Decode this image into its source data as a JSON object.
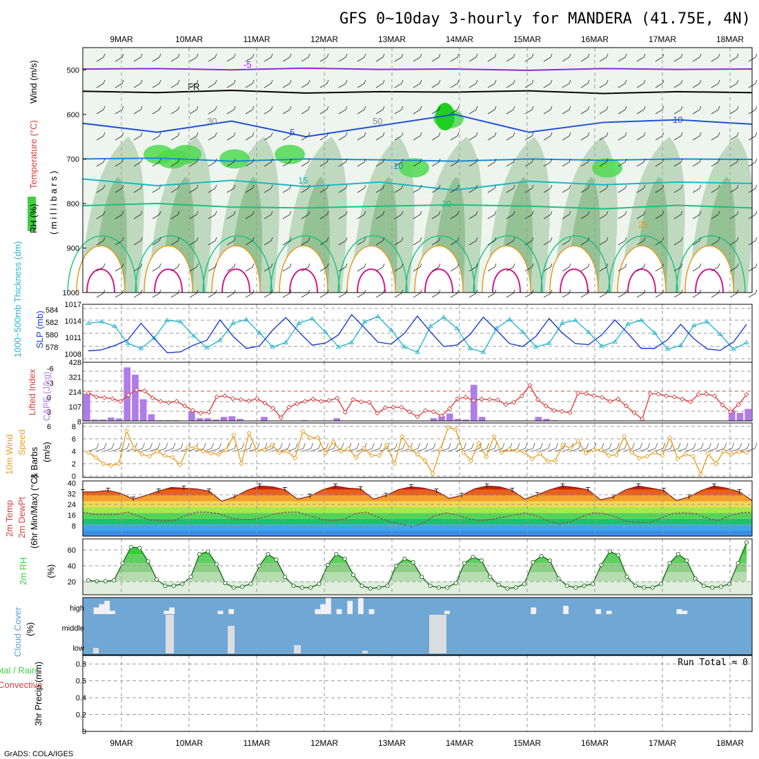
{
  "title": "GFS 0~10day 3-hourly for MANDERA (41.75E, 4N)",
  "credit": "GrADS: COLA/IGES",
  "dates": [
    "9MAR",
    "10MAR",
    "11MAR",
    "12MAR",
    "13MAR",
    "14MAR",
    "15MAR",
    "16MAR",
    "17MAR",
    "18MAR"
  ],
  "chart_data": [
    {
      "type": "heatmap",
      "name": "upper-air cross section",
      "ylabel_parts": [
        "RH (%)",
        "Temperature (°C)",
        "Wind (m/s)"
      ],
      "ylabel2": "( m i l l i b a r s )",
      "y_ticks": [
        "500",
        "600",
        "700",
        "800",
        "900",
        "1000"
      ],
      "ylim": [
        1000,
        450
      ],
      "contour_labels": [
        "-5",
        "FR",
        "5",
        "10",
        "15",
        "20",
        "25",
        "10",
        "30",
        "50"
      ],
      "isotherms": [
        {
          "name": "-5",
          "color": "#8a2bd0",
          "levels_hpa": [
            498,
            497,
            500,
            496,
            499,
            498,
            501,
            497,
            499,
            498
          ]
        },
        {
          "name": "FR",
          "color": "#000000",
          "levels_hpa": [
            548,
            551,
            546,
            552,
            549,
            550,
            547,
            553,
            549,
            551
          ]
        },
        {
          "name": "5",
          "color": "#1e4fd8",
          "levels_hpa": [
            620,
            640,
            615,
            650,
            625,
            600,
            640,
            618,
            612,
            622
          ]
        },
        {
          "name": "10",
          "color": "#1a8ad8",
          "levels_hpa": [
            700,
            698,
            705,
            700,
            702,
            705,
            700,
            703,
            700,
            701
          ]
        },
        {
          "name": "15",
          "color": "#18b8c0",
          "levels_hpa": [
            745,
            760,
            748,
            762,
            752,
            770,
            750,
            758,
            752,
            755
          ]
        },
        {
          "name": "20",
          "color": "#18c080",
          "levels_hpa": [
            805,
            800,
            808,
            810,
            806,
            803,
            806,
            812,
            804,
            810
          ]
        }
      ]
    },
    {
      "type": "line",
      "name": "thickness and SLP",
      "ylabel_left": "1000~500mb Thickness (dm)",
      "ylabel_right": "SLP (mb)",
      "left_ticks": [
        "584",
        "582",
        "580",
        "578"
      ],
      "right_ticks": [
        "1017",
        "1014",
        "1011",
        "1008"
      ],
      "series": [
        {
          "name": "SLP",
          "color": "#1a3acc",
          "values": [
            1008.0,
            1008.2,
            1009.1,
            1010.3,
            1013.7,
            1010.6,
            1007.6,
            1007.8,
            1009.2,
            1010.2,
            1014.4,
            1011.0,
            1008.5,
            1009.0,
            1012.3,
            1014.9,
            1011.9,
            1009.2,
            1009.6,
            1011.3,
            1015.5,
            1012.7,
            1009.8,
            1009.4,
            1011.6,
            1015.2,
            1011.9,
            1008.9,
            1009.2,
            1011.4,
            1015.0,
            1012.3,
            1009.5,
            1008.9,
            1011.0,
            1014.7,
            1011.7,
            1009.5,
            1009.3,
            1011.3,
            1014.4,
            1011.6,
            1008.5,
            1008.5,
            1010.3,
            1013.5,
            1010.5,
            1008.4,
            1008.1,
            1009.8,
            1013.5
          ]
        },
        {
          "name": "Thickness",
          "color": "#29b6d0",
          "values": [
            582.2,
            582.4,
            581.8,
            579.5,
            578.8,
            580.2,
            582.6,
            582.4,
            580.5,
            578.9,
            579.9,
            582.2,
            582.7,
            580.9,
            579.0,
            579.6,
            582.2,
            582.8,
            581.0,
            579.0,
            579.6,
            582.4,
            583.1,
            581.3,
            579.0,
            578.3,
            581.8,
            583.0,
            581.5,
            578.8,
            578.3,
            581.5,
            582.7,
            581.0,
            579.0,
            579.5,
            582.2,
            582.6,
            581.0,
            579.1,
            579.7,
            582.1,
            582.6,
            580.9,
            578.7,
            579.2,
            581.9,
            582.4,
            580.7,
            578.7,
            579.6
          ]
        }
      ]
    },
    {
      "type": "bar",
      "name": "lifted index and CAPE",
      "ylabel_left": "Lifted Index",
      "ylabel_right": "CAPE (J/kg)",
      "left_ticks": [
        "-6",
        "-3",
        "0",
        "3",
        "6"
      ],
      "right_ticks": [
        "428",
        "321",
        "214",
        "107",
        "8"
      ],
      "series": [
        {
          "name": "CAPE",
          "color": "#b07ce8",
          "values": [
            203,
            10,
            10,
            25,
            18,
            400,
            345,
            162,
            50,
            5,
            5,
            5,
            0,
            70,
            20,
            20,
            10,
            30,
            35,
            15,
            0,
            0,
            30,
            0,
            0,
            0,
            0,
            5,
            0,
            0,
            0,
            20,
            0,
            0,
            0,
            0,
            0,
            0,
            0,
            0,
            0,
            0,
            0,
            20,
            35,
            55,
            15,
            10,
            270,
            30,
            0,
            0,
            0,
            0,
            0,
            0,
            30,
            15,
            5,
            0,
            0,
            0,
            0,
            0,
            0,
            0,
            0,
            0,
            0,
            0,
            0,
            0,
            0,
            0,
            0,
            0,
            0,
            0,
            0,
            0,
            80,
            60,
            90
          ]
        },
        {
          "name": "Lifted Index",
          "color": "#d94040",
          "values": [
            0.2,
            1.0,
            1.2,
            1.4,
            2.0,
            0.6,
            -0.5,
            -0.3,
            1.2,
            2.0,
            2.3,
            2.0,
            3.0,
            4.0,
            4.6,
            4.4,
            1.0,
            0.8,
            1.4,
            1.6,
            1.9,
            1.4,
            2.4,
            3.5,
            5.6,
            3.3,
            2.5,
            2.0,
            1.5,
            2.0,
            1.8,
            1.3,
            4.4,
            1.6,
            2.1,
            2.2,
            4.6,
            3.4,
            3.3,
            3.3,
            4.3,
            5.4,
            4.0,
            4.3,
            5.2,
            3.6,
            1.4,
            1.1,
            1.8,
            1.5,
            1.6,
            1.7,
            2.7,
            2.2,
            0.8,
            -1.5,
            1.6,
            3.0,
            4.0,
            4.2,
            4.5,
            0.2,
            0.3,
            0.8,
            1.1,
            2.0,
            1.5,
            3.0,
            4.5,
            5.9,
            0.3,
            0.4,
            0.8,
            1.0,
            1.5,
            2.1,
            0.5,
            0.4,
            0.8,
            2.8,
            4.3,
            2.7,
            0.5
          ]
        }
      ]
    },
    {
      "type": "line",
      "name": "10m wind",
      "ylabel_parts": [
        "10m Wind",
        "Speed",
        "& Barbs",
        "(m/s)"
      ],
      "y_ticks": [
        "8",
        "6",
        "4",
        "2",
        "0"
      ],
      "series": [
        {
          "name": "10m Wind Speed",
          "color": "#e89e24",
          "values": [
            3.8,
            3.0,
            2.0,
            1.7,
            2.0,
            7.3,
            4.5,
            3.5,
            3.2,
            4.0,
            3.3,
            3.0,
            1.8,
            4.6,
            4.6,
            4.0,
            3.7,
            3.5,
            4.2,
            6.6,
            2.0,
            6.9,
            4.1,
            4.2,
            5.0,
            3.8,
            4.0,
            2.9,
            7.2,
            6.2,
            6.2,
            3.7,
            5.5,
            4.0,
            4.4,
            3.0,
            4.5,
            3.3,
            3.3,
            5.0,
            2.0,
            6.4,
            4.5,
            3.5,
            2.5,
            0.4,
            4.3,
            7.8,
            7.5,
            3.8,
            2.5,
            5.3,
            3.1,
            6.4,
            3.8,
            4.3,
            4.1,
            3.8,
            2.8,
            3.6,
            2.4,
            2.5,
            5.0,
            4.5,
            5.6,
            3.7,
            4.2,
            4.2,
            3.3,
            3.4,
            6.4,
            3.8,
            2.9,
            3.2,
            3.8,
            3.3,
            6.2,
            2.8,
            3.5,
            3.2,
            0.3,
            3.6,
            2.0,
            4.0,
            3.5,
            3.9,
            3.8
          ]
        }
      ]
    },
    {
      "type": "area",
      "name": "2m temperature",
      "ylabel_parts": [
        "2m Temp",
        "2m DewPt",
        "(6hr Min/Max) (°C)"
      ],
      "y_ticks": [
        "40",
        "32",
        "24",
        "16",
        "8"
      ],
      "series": [
        {
          "name": "2m Temp",
          "color": "#8b1a1a",
          "values": [
            34.5,
            34.5,
            35.5,
            33.5,
            29.5,
            32.0,
            35.0,
            37.5,
            37.0,
            36.5,
            35.0,
            28.0,
            31.0,
            35.5,
            38.5,
            38.0,
            36.0,
            29.5,
            31.5,
            36.0,
            38.5,
            37.0,
            36.5,
            29.5,
            32.0,
            36.0,
            38.0,
            37.0,
            35.0,
            30.0,
            32.0,
            36.5,
            38.5,
            38.0,
            35.5,
            29.5,
            32.5,
            36.0,
            38.5,
            37.5,
            36.0,
            29.0,
            31.0,
            36.0,
            38.5,
            37.0,
            35.5,
            28.5,
            31.0,
            35.5,
            38.5,
            37.0,
            34.5,
            28.5
          ]
        },
        {
          "name": "2m DewPt",
          "color": "#6a4a4a",
          "values": [
            20.5,
            19.0,
            19.0,
            19.0,
            20.5,
            17.5,
            15.0,
            14.5,
            14.5,
            18.0,
            20.5,
            20.5,
            19.5,
            16.5,
            15.5,
            15.5,
            17.0,
            19.5,
            20.5,
            20.5,
            18.0,
            15.5,
            14.5,
            15.5,
            19.5,
            20.5,
            17.0,
            14.0,
            12.5,
            10.5,
            13.0,
            18.0,
            20.0,
            18.5,
            16.0,
            14.5,
            15.5,
            17.0,
            18.5,
            20.0,
            18.0,
            14.5,
            12.5,
            14.0,
            17.5,
            20.0,
            19.5,
            17.0,
            14.0,
            13.5,
            13.5,
            16.5,
            19.5,
            20.0,
            19.5,
            16.5,
            14.5,
            18.0,
            20.0,
            20.5
          ]
        }
      ]
    },
    {
      "type": "area",
      "name": "2m relative humidity",
      "ylabel": "2m RH",
      "y_unit": "(%)",
      "y_ticks": [
        "60",
        "40",
        "20"
      ],
      "series": [
        {
          "name": "2m RH",
          "color": "#3fcf3f",
          "values": [
            26,
            25,
            25,
            26,
            45,
            63,
            62,
            47,
            27,
            20,
            20,
            22,
            30,
            55,
            58,
            44,
            23,
            18,
            19,
            22,
            42,
            55,
            49,
            30,
            20,
            18,
            18,
            22,
            43,
            55,
            50,
            32,
            20,
            17,
            18,
            20,
            42,
            50,
            46,
            30,
            20,
            18,
            18,
            23,
            45,
            52,
            48,
            30,
            21,
            17,
            18,
            22,
            46,
            53,
            48,
            28,
            20,
            18,
            20,
            22,
            43,
            58,
            54,
            30,
            20,
            18,
            18,
            22,
            45,
            55,
            48,
            28,
            20,
            18,
            19,
            22,
            45,
            68
          ]
        }
      ]
    },
    {
      "type": "heatmap",
      "name": "cloud cover",
      "ylabel": "Cloud Cover",
      "y_unit": "(%)",
      "rows": [
        "high",
        "middle",
        "low"
      ],
      "high": [
        0,
        0,
        40,
        60,
        80,
        20,
        0,
        0,
        0,
        0,
        0,
        0,
        0,
        0,
        0,
        20,
        40,
        0,
        0,
        0,
        0,
        0,
        0,
        0,
        0,
        20,
        0,
        30,
        0,
        0,
        0,
        0,
        0,
        0,
        0,
        0,
        0,
        0,
        0,
        0,
        0,
        0,
        0,
        30,
        60,
        100,
        0,
        30,
        0,
        80,
        0,
        100,
        0,
        30,
        0,
        0,
        0,
        0,
        0,
        0,
        0,
        0,
        0,
        0,
        0,
        0,
        0,
        20,
        0,
        0,
        0,
        0,
        0,
        0,
        0,
        0,
        0,
        0,
        0,
        0,
        0,
        0,
        0,
        40,
        0,
        0,
        0,
        0,
        0,
        50,
        0,
        0,
        0,
        0,
        0,
        30,
        0,
        20,
        0,
        0,
        0,
        0,
        0,
        0,
        0,
        0,
        0,
        0,
        0,
        0,
        30,
        20,
        0,
        0,
        0,
        0,
        0,
        0,
        0,
        0,
        0,
        0,
        0,
        0
      ],
      "middle": [
        0,
        0,
        0,
        0,
        0,
        0,
        0,
        0,
        0,
        0,
        0,
        0,
        0,
        0,
        0,
        0,
        0,
        0,
        0,
        0,
        0,
        0,
        0,
        0,
        0,
        0,
        0,
        0,
        0,
        0,
        0,
        0,
        0,
        0,
        0,
        0,
        0,
        0,
        0,
        0,
        0,
        0,
        0,
        0,
        0,
        0,
        0,
        0,
        0,
        0,
        0,
        0,
        0,
        0,
        0,
        0,
        0,
        0,
        0,
        0,
        0,
        0,
        0,
        0,
        0,
        0,
        0,
        0,
        0,
        0,
        0,
        0,
        0,
        0,
        0,
        0,
        0,
        0,
        0,
        0,
        0,
        0,
        0,
        0,
        0,
        0,
        0,
        0,
        0,
        0,
        0,
        0,
        0,
        0,
        0,
        0,
        0,
        0,
        0,
        0,
        0,
        0,
        0,
        0,
        0,
        0,
        0,
        0,
        0,
        0,
        0,
        0,
        0,
        0,
        0,
        0,
        0,
        0,
        0,
        0,
        0,
        0
      ],
      "low": [
        0,
        0,
        0,
        0,
        0,
        0,
        0,
        0,
        0,
        0,
        0,
        0,
        0,
        0,
        0,
        0,
        0,
        0,
        0,
        0,
        0,
        0,
        0,
        0,
        0,
        0,
        0,
        0,
        0,
        0,
        0,
        0,
        0,
        0,
        0,
        0,
        0,
        0,
        0,
        0,
        0,
        0,
        0,
        0,
        0,
        0,
        0,
        0,
        0,
        0,
        0,
        0,
        0,
        0,
        0,
        0,
        0,
        0,
        0,
        0,
        0,
        0,
        0,
        0,
        0,
        0,
        0,
        0,
        0,
        0,
        0,
        0,
        0,
        0,
        0,
        0,
        0,
        0,
        0,
        0,
        0,
        0,
        0,
        0,
        0,
        0,
        0,
        0,
        0,
        0,
        0,
        0,
        0,
        0,
        0,
        0,
        0,
        0,
        0,
        0,
        0,
        0,
        0,
        0,
        0,
        0,
        0,
        0,
        0,
        0,
        0,
        0,
        0,
        0,
        0,
        0,
        0,
        0,
        0,
        0,
        0,
        0
      ]
    },
    {
      "type": "bar",
      "name": "precipitation",
      "ylabel_parts": [
        "Total / Rain",
        "Convective",
        "3hr Precip (mm)"
      ],
      "y_ticks": [
        "0.8",
        "0.6",
        "0.4",
        "0.2",
        "0"
      ],
      "ylim": [
        0,
        0.9
      ],
      "values": [],
      "run_total_label": "Run Total = 0"
    }
  ],
  "colors": {
    "rh_fill": "#4fd94f",
    "cloud_bg": "#6fa8d4",
    "cape": "#b07ce8",
    "lifted": "#d94040",
    "wind": "#e89e24",
    "thickness": "#29b6d0",
    "slp": "#1a3acc"
  }
}
